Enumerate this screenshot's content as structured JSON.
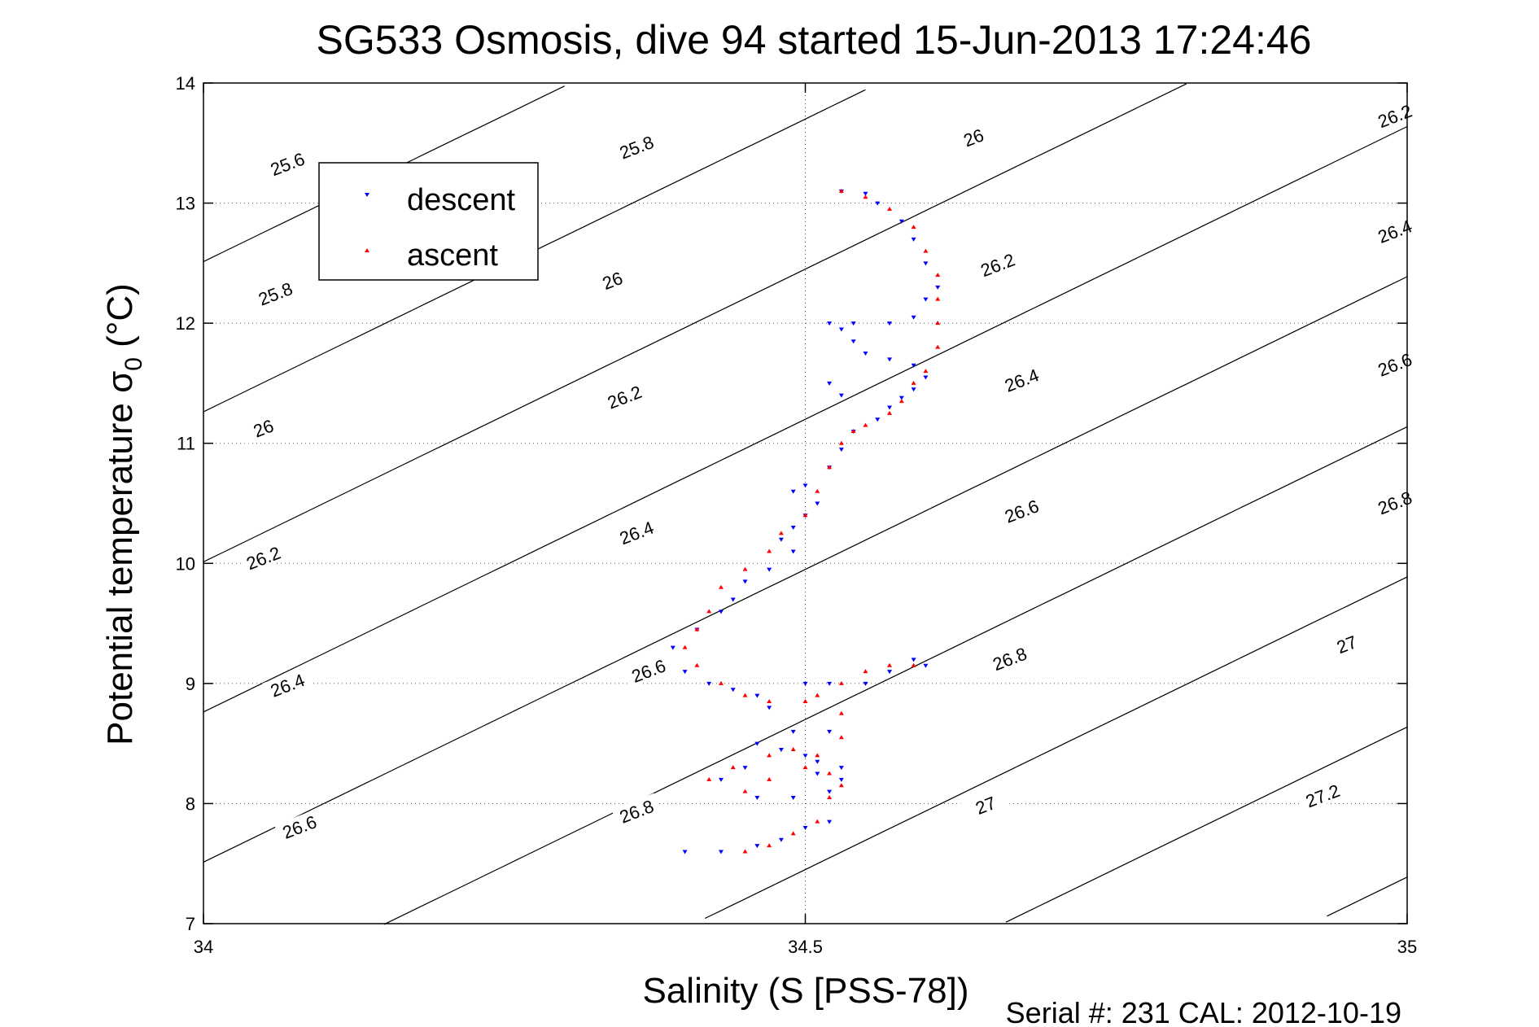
{
  "chart_data": {
    "type": "scatter",
    "title": "SG533 Osmosis, dive 94 started 15-Jun-2013 17:24:46",
    "xlabel": "Salinity (S [PSS-78])",
    "ylabel": "Potential temperature σ",
    "ylabel_sub": "0",
    "ylabel_unit": " (°C)",
    "footer": "Serial #: 231  CAL: 2012-10-19",
    "xlim": [
      34,
      35
    ],
    "ylim": [
      7,
      14
    ],
    "xticks": [
      34,
      34.5,
      35
    ],
    "xtick_labels": [
      "34",
      "34.5",
      "35"
    ],
    "yticks": [
      7,
      8,
      9,
      10,
      11,
      12,
      13,
      14
    ],
    "ytick_labels": [
      "7",
      "8",
      "9",
      "10",
      "11",
      "12",
      "13",
      "14"
    ],
    "grid": true,
    "legend_position": "top-left",
    "legend": [
      {
        "label": "descent",
        "marker": "down-triangle",
        "color": "#0000ff"
      },
      {
        "label": "ascent",
        "marker": "up-triangle",
        "color": "#ff0000"
      }
    ],
    "contours": {
      "levels": [
        25.6,
        25.8,
        26,
        26.2,
        26.4,
        26.6,
        26.8,
        27,
        27.2
      ],
      "labels": [
        {
          "text": "25.6",
          "s": 34.07,
          "t": 13.32
        },
        {
          "text": "25.8",
          "s": 34.36,
          "t": 13.46
        },
        {
          "text": "25.8",
          "s": 34.06,
          "t": 12.24
        },
        {
          "text": "26",
          "s": 34.64,
          "t": 13.54
        },
        {
          "text": "26",
          "s": 34.34,
          "t": 12.35
        },
        {
          "text": "26",
          "s": 34.05,
          "t": 11.12
        },
        {
          "text": "26.2",
          "s": 34.99,
          "t": 13.72
        },
        {
          "text": "26.2",
          "s": 34.66,
          "t": 12.48
        },
        {
          "text": "26.2",
          "s": 34.35,
          "t": 11.38
        },
        {
          "text": "26.2",
          "s": 34.05,
          "t": 10.04
        },
        {
          "text": "26.4",
          "s": 34.99,
          "t": 12.76
        },
        {
          "text": "26.4",
          "s": 34.68,
          "t": 11.52
        },
        {
          "text": "26.4",
          "s": 34.36,
          "t": 10.25
        },
        {
          "text": "26.4",
          "s": 34.07,
          "t": 8.98
        },
        {
          "text": "26.6",
          "s": 34.99,
          "t": 11.65
        },
        {
          "text": "26.6",
          "s": 34.68,
          "t": 10.43
        },
        {
          "text": "26.6",
          "s": 34.37,
          "t": 9.1
        },
        {
          "text": "26.6",
          "s": 34.08,
          "t": 7.8
        },
        {
          "text": "26.8",
          "s": 34.99,
          "t": 10.5
        },
        {
          "text": "26.8",
          "s": 34.67,
          "t": 9.2
        },
        {
          "text": "26.8",
          "s": 34.36,
          "t": 7.93
        },
        {
          "text": "27",
          "s": 34.95,
          "t": 9.32
        },
        {
          "text": "27",
          "s": 34.65,
          "t": 7.98
        },
        {
          "text": "27.2",
          "s": 34.93,
          "t": 8.06
        }
      ]
    },
    "series": [
      {
        "name": "descent",
        "color": "#0000ff",
        "marker": "down-triangle",
        "points": [
          [
            34.4,
            7.6
          ],
          [
            34.43,
            7.6
          ],
          [
            34.46,
            7.65
          ],
          [
            34.48,
            7.7
          ],
          [
            34.5,
            7.8
          ],
          [
            34.52,
            7.85
          ],
          [
            34.52,
            8.1
          ],
          [
            34.53,
            8.2
          ],
          [
            34.53,
            8.3
          ],
          [
            34.51,
            8.35
          ],
          [
            34.5,
            8.4
          ],
          [
            34.48,
            8.45
          ],
          [
            34.46,
            8.5
          ],
          [
            34.45,
            8.3
          ],
          [
            34.43,
            8.2
          ],
          [
            34.46,
            8.05
          ],
          [
            34.49,
            8.05
          ],
          [
            34.51,
            8.25
          ],
          [
            34.52,
            8.6
          ],
          [
            34.49,
            8.6
          ],
          [
            34.47,
            8.8
          ],
          [
            34.46,
            8.9
          ],
          [
            34.44,
            8.95
          ],
          [
            34.42,
            9.0
          ],
          [
            34.4,
            9.1
          ],
          [
            34.39,
            9.3
          ],
          [
            34.41,
            9.45
          ],
          [
            34.43,
            9.6
          ],
          [
            34.44,
            9.7
          ],
          [
            34.45,
            9.85
          ],
          [
            34.47,
            9.95
          ],
          [
            34.49,
            10.1
          ],
          [
            34.48,
            10.2
          ],
          [
            34.49,
            10.3
          ],
          [
            34.5,
            10.4
          ],
          [
            34.51,
            10.5
          ],
          [
            34.49,
            10.6
          ],
          [
            34.5,
            10.65
          ],
          [
            34.52,
            10.8
          ],
          [
            34.53,
            10.95
          ],
          [
            34.54,
            11.1
          ],
          [
            34.56,
            11.2
          ],
          [
            34.57,
            11.3
          ],
          [
            34.58,
            11.38
          ],
          [
            34.59,
            11.45
          ],
          [
            34.6,
            11.55
          ],
          [
            34.59,
            11.65
          ],
          [
            34.57,
            11.7
          ],
          [
            34.55,
            11.75
          ],
          [
            34.54,
            11.85
          ],
          [
            34.53,
            11.95
          ],
          [
            34.52,
            12.0
          ],
          [
            34.54,
            12.0
          ],
          [
            34.57,
            12.0
          ],
          [
            34.59,
            12.05
          ],
          [
            34.6,
            12.2
          ],
          [
            34.61,
            12.3
          ],
          [
            34.6,
            12.5
          ],
          [
            34.59,
            12.7
          ],
          [
            34.58,
            12.85
          ],
          [
            34.56,
            13.0
          ],
          [
            34.55,
            13.08
          ],
          [
            34.53,
            13.1
          ],
          [
            34.52,
            11.5
          ],
          [
            34.53,
            11.4
          ],
          [
            34.55,
            9.0
          ],
          [
            34.57,
            9.1
          ],
          [
            34.59,
            9.2
          ],
          [
            34.6,
            9.15
          ],
          [
            34.52,
            9.0
          ],
          [
            34.5,
            9.0
          ]
        ]
      },
      {
        "name": "ascent",
        "color": "#ff0000",
        "marker": "up-triangle",
        "points": [
          [
            34.45,
            7.6
          ],
          [
            34.47,
            7.65
          ],
          [
            34.49,
            7.75
          ],
          [
            34.51,
            7.85
          ],
          [
            34.52,
            8.05
          ],
          [
            34.53,
            8.15
          ],
          [
            34.52,
            8.25
          ],
          [
            34.51,
            8.4
          ],
          [
            34.49,
            8.45
          ],
          [
            34.47,
            8.4
          ],
          [
            34.44,
            8.3
          ],
          [
            34.42,
            8.2
          ],
          [
            34.45,
            8.1
          ],
          [
            34.47,
            8.2
          ],
          [
            34.5,
            8.3
          ],
          [
            34.53,
            8.55
          ],
          [
            34.53,
            8.75
          ],
          [
            34.5,
            8.85
          ],
          [
            34.47,
            8.85
          ],
          [
            34.45,
            8.9
          ],
          [
            34.43,
            9.0
          ],
          [
            34.41,
            9.15
          ],
          [
            34.4,
            9.3
          ],
          [
            34.41,
            9.45
          ],
          [
            34.42,
            9.6
          ],
          [
            34.43,
            9.8
          ],
          [
            34.45,
            9.95
          ],
          [
            34.47,
            10.1
          ],
          [
            34.48,
            10.25
          ],
          [
            34.5,
            10.4
          ],
          [
            34.51,
            10.6
          ],
          [
            34.52,
            10.8
          ],
          [
            34.53,
            11.0
          ],
          [
            34.54,
            11.1
          ],
          [
            34.55,
            11.15
          ],
          [
            34.57,
            11.25
          ],
          [
            34.58,
            11.35
          ],
          [
            34.59,
            11.5
          ],
          [
            34.6,
            11.6
          ],
          [
            34.61,
            11.8
          ],
          [
            34.61,
            12.0
          ],
          [
            34.61,
            12.2
          ],
          [
            34.61,
            12.4
          ],
          [
            34.6,
            12.6
          ],
          [
            34.59,
            12.8
          ],
          [
            34.57,
            12.95
          ],
          [
            34.55,
            13.05
          ],
          [
            34.53,
            13.1
          ],
          [
            34.55,
            9.1
          ],
          [
            34.57,
            9.15
          ],
          [
            34.59,
            9.15
          ],
          [
            34.53,
            9.0
          ],
          [
            34.51,
            8.9
          ]
        ]
      }
    ]
  }
}
